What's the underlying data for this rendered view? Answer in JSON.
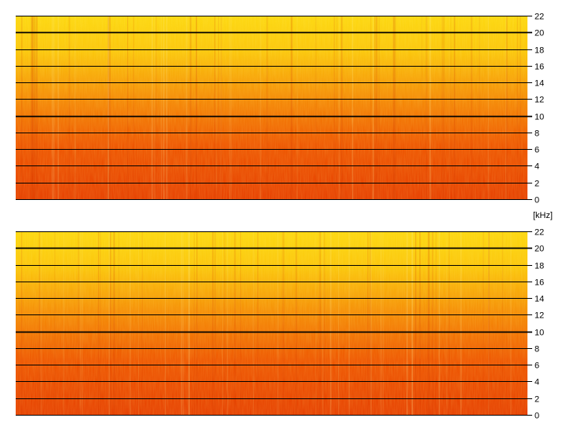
{
  "chart_data": {
    "type": "heatmap",
    "unit_label": "[kHz]",
    "panels": [
      {
        "name": "",
        "y_ticks": [
          0,
          2,
          4,
          6,
          8,
          10,
          12,
          14,
          16,
          18,
          20,
          22
        ],
        "ylim": [
          0,
          22
        ],
        "major_lines": [
          10,
          20
        ],
        "grid": true
      },
      {
        "name": "",
        "y_ticks": [
          0,
          2,
          4,
          6,
          8,
          10,
          12,
          14,
          16,
          18,
          20,
          22
        ],
        "ylim": [
          0,
          22
        ],
        "major_lines": [
          10,
          20
        ],
        "grid": true
      }
    ],
    "colors": {
      "low_freq": "#e63e00",
      "mid_freq": "#f36a00",
      "high_freq": "#fbc50a",
      "top_freq": "#fdd80f"
    }
  }
}
